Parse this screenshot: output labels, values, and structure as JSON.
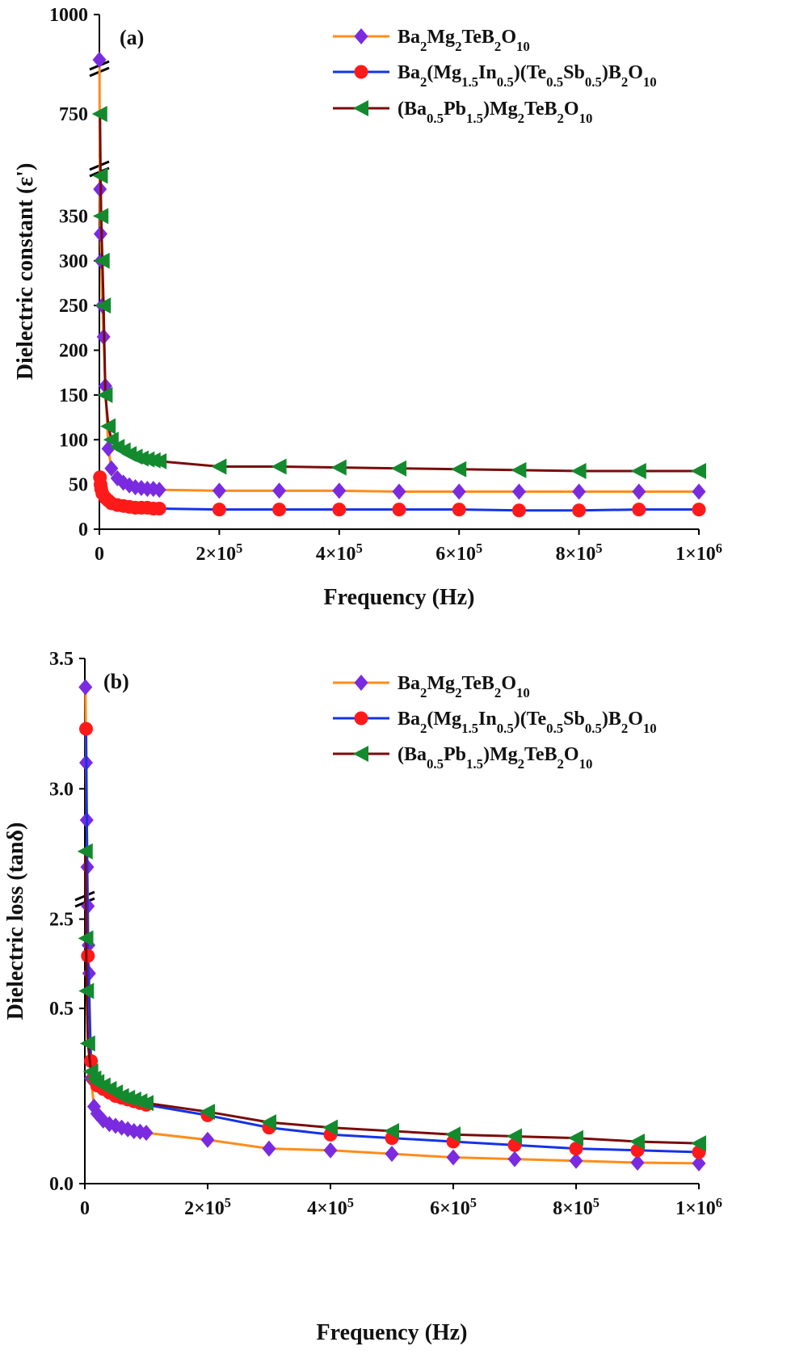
{
  "colors": {
    "series1": "#ff8c1a",
    "series2": "#1433e6",
    "series3": "#7a0b0b",
    "marker1": "#7a2be0",
    "marker2": "#ff1a1a",
    "marker3": "#138a2e"
  },
  "chart_data": [
    {
      "type": "line",
      "panel_label": "(a)",
      "xlabel": "Frequency (Hz)",
      "ylabel": "Dielectric constant (ε')",
      "xlim": [
        0,
        1000000
      ],
      "x_ticks": [
        "0",
        "2×10",
        "4×10",
        "6×10",
        "8×10",
        "1×10"
      ],
      "x_tick_exps": [
        "",
        "5",
        "5",
        "5",
        "5",
        "6"
      ],
      "y_axis_break": true,
      "y_segments": [
        {
          "range": [
            0,
            400
          ],
          "ticks": [
            0,
            50,
            100,
            150,
            200,
            250,
            300,
            350
          ]
        },
        {
          "range": [
            725,
            775
          ],
          "ticks": [
            750
          ]
        },
        {
          "range": [
            985,
            1000
          ],
          "ticks": [
            1000
          ]
        }
      ],
      "y_tick_labels": [
        "0",
        "50",
        "100",
        "150",
        "200",
        "250",
        "300",
        "350",
        "750",
        "1000"
      ],
      "legend_position": "top-right",
      "series": [
        {
          "name": "Ba2Mg2TeB2O10",
          "marker": "diamond",
          "x": [
            100,
            1000,
            2000,
            3000,
            5000,
            7000,
            10000,
            15000,
            20000,
            30000,
            40000,
            50000,
            60000,
            70000,
            80000,
            90000,
            100000,
            200000,
            300000,
            400000,
            500000,
            600000,
            700000,
            800000,
            900000,
            1000000
          ],
          "y": [
            985,
            380,
            330,
            300,
            250,
            215,
            160,
            90,
            68,
            57,
            52,
            49,
            47,
            46,
            45,
            45,
            44,
            43,
            43,
            43,
            42,
            42,
            42,
            42,
            42,
            42
          ]
        },
        {
          "name": "Ba2(Mg1.5In0.5)(Te0.5Sb0.5)B2O10",
          "marker": "circle",
          "x": [
            1000,
            2000,
            3000,
            5000,
            10000,
            15000,
            20000,
            30000,
            40000,
            50000,
            60000,
            70000,
            80000,
            90000,
            100000,
            200000,
            300000,
            400000,
            500000,
            600000,
            700000,
            800000,
            900000,
            1000000
          ],
          "y": [
            58,
            50,
            45,
            40,
            35,
            32,
            29,
            27,
            26,
            25,
            24,
            24,
            24,
            23,
            23,
            22,
            22,
            22,
            22,
            22,
            21,
            21,
            22,
            22
          ]
        },
        {
          "name": "(Ba0.5Pb1.5)Mg2TeB2O10",
          "marker": "triangle-left",
          "x": [
            1000,
            2000,
            3000,
            5000,
            7000,
            10000,
            15000,
            20000,
            30000,
            40000,
            50000,
            60000,
            70000,
            80000,
            90000,
            100000,
            200000,
            300000,
            400000,
            500000,
            600000,
            700000,
            800000,
            900000,
            1000000
          ],
          "y": [
            750,
            395,
            350,
            300,
            250,
            150,
            115,
            100,
            92,
            88,
            84,
            81,
            79,
            78,
            77,
            76,
            70,
            70,
            69,
            68,
            67,
            66,
            65,
            65,
            65
          ]
        }
      ]
    },
    {
      "type": "line",
      "panel_label": "(b)",
      "xlabel": "Frequency (Hz)",
      "ylabel": "Dielectric loss (tanδ)",
      "xlim": [
        0,
        1000000
      ],
      "x_ticks": [
        "0",
        "2×10",
        "4×10",
        "6×10",
        "8×10",
        "1×10"
      ],
      "x_tick_exps": [
        "",
        "5",
        "5",
        "5",
        "5",
        "6"
      ],
      "y_axis_break": true,
      "y_segments": [
        {
          "range": [
            0,
            0.8
          ],
          "ticks": [
            0.0,
            0.5
          ]
        },
        {
          "range": [
            2.35,
            3.5
          ],
          "ticks": [
            2.5,
            3.0,
            3.5
          ]
        }
      ],
      "y_tick_labels": [
        "0.0",
        "0.5",
        "2.5",
        "3.0",
        "3.5"
      ],
      "legend_position": "top-right",
      "series": [
        {
          "name": "Ba2Mg2TeB2O10",
          "marker": "diamond",
          "x": [
            1000,
            2000,
            3000,
            4000,
            5000,
            6000,
            7000,
            10000,
            15000,
            20000,
            30000,
            40000,
            50000,
            60000,
            70000,
            80000,
            90000,
            100000,
            200000,
            300000,
            400000,
            500000,
            600000,
            700000,
            800000,
            900000,
            1000000
          ],
          "y": [
            3.39,
            3.1,
            2.88,
            2.7,
            2.55,
            2.4,
            0.6,
            0.3,
            0.22,
            0.2,
            0.18,
            0.17,
            0.165,
            0.16,
            0.155,
            0.15,
            0.148,
            0.145,
            0.125,
            0.1,
            0.095,
            0.085,
            0.075,
            0.07,
            0.065,
            0.06,
            0.058
          ]
        },
        {
          "name": "Ba2(Mg1.5In0.5)(Te0.5Sb0.5)B2O10",
          "marker": "circle",
          "x": [
            2000,
            5000,
            10000,
            15000,
            20000,
            30000,
            40000,
            50000,
            60000,
            70000,
            80000,
            90000,
            100000,
            200000,
            300000,
            400000,
            500000,
            600000,
            700000,
            800000,
            900000,
            1000000
          ],
          "y": [
            3.23,
            0.65,
            0.35,
            0.3,
            0.28,
            0.27,
            0.26,
            0.25,
            0.245,
            0.24,
            0.235,
            0.23,
            0.225,
            0.195,
            0.16,
            0.14,
            0.13,
            0.12,
            0.11,
            0.1,
            0.095,
            0.09
          ]
        },
        {
          "name": "(Ba0.5Pb1.5)Mg2TeB2O10",
          "marker": "triangle-left",
          "x": [
            1000,
            2000,
            3000,
            5000,
            10000,
            15000,
            20000,
            30000,
            40000,
            50000,
            60000,
            70000,
            80000,
            90000,
            100000,
            200000,
            300000,
            400000,
            500000,
            600000,
            700000,
            800000,
            900000,
            1000000
          ],
          "y": [
            2.76,
            0.7,
            0.55,
            0.4,
            0.32,
            0.3,
            0.29,
            0.28,
            0.27,
            0.26,
            0.25,
            0.245,
            0.24,
            0.235,
            0.23,
            0.205,
            0.175,
            0.16,
            0.15,
            0.14,
            0.135,
            0.13,
            0.12,
            0.115
          ]
        }
      ]
    }
  ]
}
